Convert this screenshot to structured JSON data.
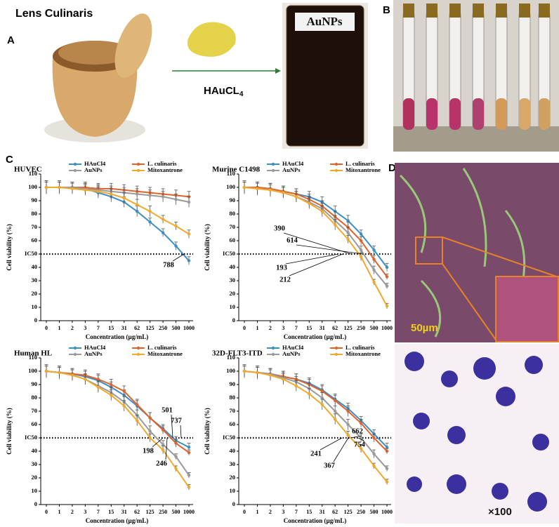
{
  "figure": {
    "panel_labels": [
      "A",
      "B",
      "C",
      "D"
    ],
    "lens_label": "Lens Culinaris",
    "reagent": "HAuCL",
    "reagent_sub": "4",
    "vial_label": "AuNPs",
    "scale_bar": "50µm",
    "magnification": "×100"
  },
  "chart_data": [
    {
      "type": "line",
      "title": "HUVEC",
      "x_label": "Concentration (µg/mL)",
      "y_label": "Cell viability (%)",
      "categories": [
        "0",
        "1",
        "2",
        "3",
        "7",
        "15",
        "31",
        "62",
        "125",
        "250",
        "500",
        "1000"
      ],
      "ylim": [
        0,
        110
      ],
      "yticks": [
        0,
        10,
        20,
        30,
        40,
        {
          "value": 50,
          "label": "IC50"
        },
        60,
        70,
        80,
        90,
        100,
        110
      ],
      "legend": "top",
      "series": [
        {
          "name": "HAuCl4",
          "color": "#3a8fc8",
          "values": [
            100,
            100,
            100,
            99,
            96,
            93,
            89,
            82,
            74,
            66,
            56,
            45
          ],
          "errors": [
            5,
            4,
            4,
            4,
            4,
            4,
            4,
            4,
            3,
            3,
            3,
            3
          ]
        },
        {
          "name": "L. culinaris",
          "color": "#e0632a",
          "values": [
            100,
            100,
            100,
            100,
            99,
            99,
            98,
            97,
            96,
            95,
            94,
            93
          ],
          "errors": [
            4,
            4,
            4,
            4,
            4,
            4,
            4,
            4,
            4,
            4,
            4,
            4
          ]
        },
        {
          "name": "AuNPs",
          "color": "#9a9a9a",
          "values": [
            100,
            100,
            100,
            99,
            98,
            97,
            96,
            95,
            94,
            93,
            91,
            89
          ],
          "errors": [
            5,
            5,
            4,
            4,
            4,
            4,
            4,
            4,
            4,
            4,
            4,
            4
          ]
        },
        {
          "name": "Mitoxantrone",
          "color": "#f0a92c",
          "values": [
            100,
            100,
            99,
            98,
            97,
            95,
            92,
            87,
            82,
            76,
            71,
            65
          ],
          "errors": [
            4,
            4,
            4,
            4,
            4,
            4,
            4,
            4,
            4,
            3,
            3,
            3
          ]
        }
      ],
      "annotations": [
        788
      ]
    },
    {
      "type": "line",
      "title": "Murine C1498",
      "x_label": "Concentration (µg/mL)",
      "y_label": "Cell viability (%)",
      "categories": [
        "0",
        "1",
        "2",
        "3",
        "7",
        "15",
        "31",
        "62",
        "125",
        "250",
        "500",
        "1000"
      ],
      "ylim": [
        0,
        110
      ],
      "yticks": [
        0,
        10,
        20,
        30,
        40,
        {
          "value": 50,
          "label": "IC50"
        },
        60,
        70,
        80,
        90,
        100,
        110
      ],
      "legend": "top",
      "series": [
        {
          "name": "HAuCl4",
          "color": "#3a8fc8",
          "values": [
            100,
            100,
            99,
            97,
            95,
            93,
            89,
            82,
            75,
            65,
            53,
            40
          ],
          "errors": [
            4,
            4,
            4,
            4,
            4,
            4,
            4,
            4,
            4,
            3,
            3,
            3
          ]
        },
        {
          "name": "L. culinaris",
          "color": "#e0632a",
          "values": [
            100,
            100,
            99,
            97,
            95,
            91,
            86,
            78,
            70,
            60,
            46,
            33
          ],
          "errors": [
            4,
            4,
            4,
            4,
            4,
            4,
            4,
            4,
            4,
            3,
            3,
            2
          ]
        },
        {
          "name": "AuNPs",
          "color": "#9a9a9a",
          "values": [
            100,
            99,
            98,
            96,
            93,
            89,
            84,
            75,
            66,
            53,
            38,
            26
          ],
          "errors": [
            5,
            5,
            5,
            4,
            4,
            4,
            4,
            4,
            4,
            3,
            3,
            2
          ]
        },
        {
          "name": "Mitoxantrone",
          "color": "#f0a92c",
          "values": [
            100,
            99,
            98,
            96,
            93,
            88,
            82,
            72,
            61,
            48,
            29,
            11
          ],
          "errors": [
            4,
            4,
            4,
            4,
            4,
            4,
            4,
            4,
            3,
            3,
            2,
            2
          ]
        }
      ],
      "annotations": [
        390,
        614,
        193,
        212
      ]
    },
    {
      "type": "line",
      "title": "Human HL",
      "x_label": "Concentration (µg/mL)",
      "y_label": "Cell viability (%)",
      "categories": [
        "0",
        "1",
        "2",
        "3",
        "7",
        "15",
        "31",
        "62",
        "125",
        "250",
        "500",
        "1000"
      ],
      "ylim": [
        0,
        110
      ],
      "yticks": [
        0,
        10,
        20,
        30,
        40,
        {
          "value": 50,
          "label": "IC50"
        },
        60,
        70,
        80,
        90,
        100,
        110
      ],
      "legend": "top",
      "series": [
        {
          "name": "HAuCl4",
          "color": "#3a8fc8",
          "values": [
            100,
            99,
            98,
            96,
            93,
            88,
            82,
            74,
            65,
            57,
            48,
            43
          ],
          "errors": [
            4,
            4,
            4,
            4,
            4,
            4,
            4,
            4,
            4,
            3,
            3,
            3
          ]
        },
        {
          "name": "L. culinaris",
          "color": "#e0632a",
          "values": [
            100,
            99,
            98,
            97,
            94,
            90,
            85,
            75,
            65,
            56,
            46,
            39
          ],
          "errors": [
            4,
            4,
            4,
            4,
            4,
            4,
            4,
            4,
            4,
            3,
            3,
            2
          ]
        },
        {
          "name": "AuNPs",
          "color": "#9a9a9a",
          "values": [
            100,
            99,
            97,
            94,
            89,
            84,
            77,
            67,
            55,
            45,
            36,
            22
          ],
          "errors": [
            5,
            5,
            4,
            4,
            4,
            4,
            4,
            4,
            4,
            3,
            2,
            2
          ]
        },
        {
          "name": "Mitoxantrone",
          "color": "#f0a92c",
          "values": [
            100,
            99,
            97,
            94,
            88,
            82,
            74,
            63,
            50,
            41,
            27,
            13
          ],
          "errors": [
            4,
            4,
            4,
            4,
            4,
            4,
            4,
            4,
            3,
            3,
            2,
            2
          ]
        }
      ],
      "annotations": [
        501,
        737,
        198,
        246
      ]
    },
    {
      "type": "line",
      "title": "32D-FLT3-ITD",
      "x_label": "Concentration (µg/mL)",
      "y_label": "Cell viability (%)",
      "categories": [
        "0",
        "1",
        "2",
        "3",
        "7",
        "15",
        "31",
        "62",
        "125",
        "250",
        "500",
        "1000"
      ],
      "ylim": [
        0,
        110
      ],
      "yticks": [
        0,
        10,
        20,
        30,
        40,
        {
          "value": 50,
          "label": "IC50"
        },
        60,
        70,
        80,
        90,
        100,
        110
      ],
      "legend": "top",
      "series": [
        {
          "name": "HAuCl4",
          "color": "#3a8fc8",
          "values": [
            100,
            99,
            98,
            96,
            94,
            91,
            86,
            79,
            72,
            63,
            53,
            43
          ],
          "errors": [
            4,
            4,
            4,
            4,
            4,
            4,
            4,
            4,
            4,
            3,
            3,
            3
          ]
        },
        {
          "name": "L. culinaris",
          "color": "#e0632a",
          "values": [
            100,
            99,
            98,
            96,
            94,
            90,
            85,
            78,
            70,
            61,
            50,
            40
          ],
          "errors": [
            4,
            4,
            4,
            4,
            4,
            4,
            4,
            4,
            4,
            3,
            3,
            2
          ]
        },
        {
          "name": "AuNPs",
          "color": "#9a9a9a",
          "values": [
            100,
            99,
            98,
            95,
            92,
            87,
            80,
            70,
            60,
            50,
            38,
            27
          ],
          "errors": [
            5,
            5,
            4,
            4,
            4,
            4,
            4,
            4,
            4,
            3,
            3,
            2
          ]
        },
        {
          "name": "Mitoxantrone",
          "color": "#f0a92c",
          "values": [
            100,
            99,
            97,
            94,
            89,
            83,
            75,
            64,
            52,
            42,
            29,
            17
          ],
          "errors": [
            4,
            4,
            4,
            4,
            4,
            4,
            4,
            4,
            3,
            3,
            2,
            2
          ]
        }
      ],
      "annotations": [
        662,
        754,
        241,
        367
      ]
    }
  ]
}
